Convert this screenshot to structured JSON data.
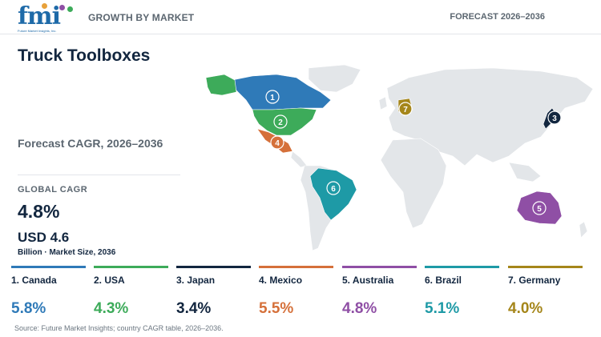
{
  "header": {
    "logo_text": "fmi",
    "logo_subtitle": "Future Market Insights, Inc.",
    "section": "GROWTH BY MARKET",
    "forecast": "FORECAST 2026–2036"
  },
  "summary": {
    "title": "Truck Toolboxes",
    "cagr_label": "Forecast CAGR, 2026–2036",
    "global_label": "GLOBAL CAGR",
    "global_value": "4.8%",
    "market_value": "USD 4.6",
    "market_note": "Billion · Market Size, 2036"
  },
  "colors": {
    "canada": "#2f7ab8",
    "usa": "#3dab5a",
    "japan": "#12263f",
    "mexico": "#d5703a",
    "australia": "#8f4fa5",
    "brazil": "#1e9aa6",
    "germany": "#a5861a",
    "land": "#e3e6e9"
  },
  "countries": [
    {
      "rank": "1",
      "label": "1. Canada",
      "cagr": "5.8%",
      "color": "#2f7ab8"
    },
    {
      "rank": "2",
      "label": "2. USA",
      "cagr": "4.3%",
      "color": "#3dab5a"
    },
    {
      "rank": "3",
      "label": "3. Japan",
      "cagr": "3.4%",
      "color": "#12263f"
    },
    {
      "rank": "4",
      "label": "4. Mexico",
      "cagr": "5.5%",
      "color": "#d5703a"
    },
    {
      "rank": "5",
      "label": "5. Australia",
      "cagr": "4.8%",
      "color": "#8f4fa5"
    },
    {
      "rank": "6",
      "label": "6. Brazil",
      "cagr": "5.1%",
      "color": "#1e9aa6"
    },
    {
      "rank": "7",
      "label": "7. Germany",
      "cagr": "4.0%",
      "color": "#a5861a"
    }
  ],
  "source": "Source: Future Market Insights; country CAGR table, 2026–2036."
}
